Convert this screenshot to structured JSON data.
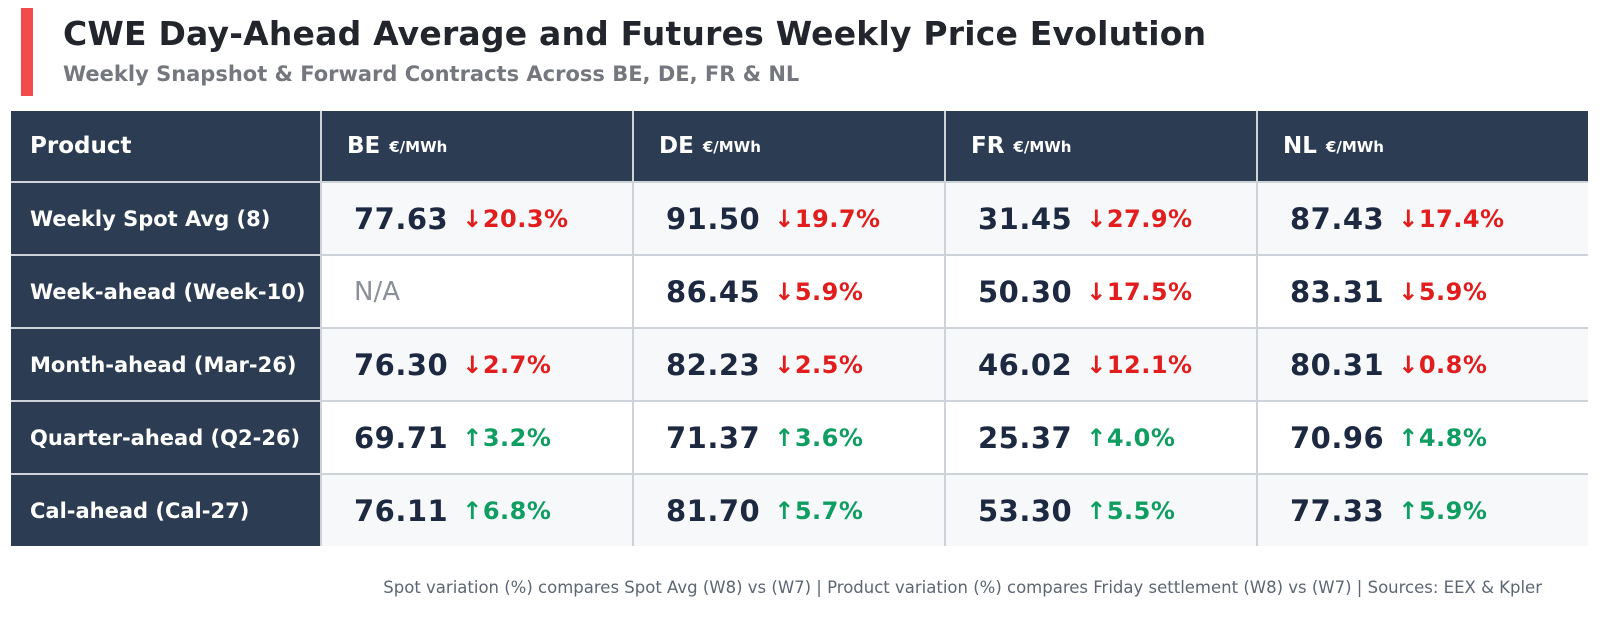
{
  "header": {
    "title": "CWE Day-Ahead Average and Futures Weekly Price Evolution",
    "subtitle": "Weekly Snapshot & Forward Contracts Across BE, DE, FR & NL"
  },
  "table": {
    "columns": [
      {
        "label": "Product",
        "unit": ""
      },
      {
        "label": "BE",
        "unit": "€/MWh"
      },
      {
        "label": "DE",
        "unit": "€/MWh"
      },
      {
        "label": "FR",
        "unit": "€/MWh"
      },
      {
        "label": "NL",
        "unit": "€/MWh"
      }
    ],
    "rows": [
      {
        "product": "Weekly Spot Avg (8)",
        "cells": [
          {
            "value": "77.63",
            "arrow": "↓",
            "change": "20.3%",
            "direction": "down"
          },
          {
            "value": "91.50",
            "arrow": "↓",
            "change": "19.7%",
            "direction": "down"
          },
          {
            "value": "31.45",
            "arrow": "↓",
            "change": "27.9%",
            "direction": "down"
          },
          {
            "value": "87.43",
            "arrow": "↓",
            "change": "17.4%",
            "direction": "down"
          }
        ]
      },
      {
        "product": "Week-ahead (Week-10)",
        "cells": [
          {
            "value": "N/A",
            "arrow": "",
            "change": "",
            "direction": "na"
          },
          {
            "value": "86.45",
            "arrow": "↓",
            "change": "5.9%",
            "direction": "down"
          },
          {
            "value": "50.30",
            "arrow": "↓",
            "change": "17.5%",
            "direction": "down"
          },
          {
            "value": "83.31",
            "arrow": "↓",
            "change": "5.9%",
            "direction": "down"
          }
        ]
      },
      {
        "product": "Month-ahead (Mar-26)",
        "cells": [
          {
            "value": "76.30",
            "arrow": "↓",
            "change": "2.7%",
            "direction": "down"
          },
          {
            "value": "82.23",
            "arrow": "↓",
            "change": "2.5%",
            "direction": "down"
          },
          {
            "value": "46.02",
            "arrow": "↓",
            "change": "12.1%",
            "direction": "down"
          },
          {
            "value": "80.31",
            "arrow": "↓",
            "change": "0.8%",
            "direction": "down"
          }
        ]
      },
      {
        "product": "Quarter-ahead (Q2-26)",
        "cells": [
          {
            "value": "69.71",
            "arrow": "↑",
            "change": "3.2%",
            "direction": "up"
          },
          {
            "value": "71.37",
            "arrow": "↑",
            "change": "3.6%",
            "direction": "up"
          },
          {
            "value": "25.37",
            "arrow": "↑",
            "change": "4.0%",
            "direction": "up"
          },
          {
            "value": "70.96",
            "arrow": "↑",
            "change": "4.8%",
            "direction": "up"
          }
        ]
      },
      {
        "product": "Cal-ahead (Cal-27)",
        "cells": [
          {
            "value": "76.11",
            "arrow": "↑",
            "change": "6.8%",
            "direction": "up"
          },
          {
            "value": "81.70",
            "arrow": "↑",
            "change": "5.7%",
            "direction": "up"
          },
          {
            "value": "53.30",
            "arrow": "↑",
            "change": "5.5%",
            "direction": "up"
          },
          {
            "value": "77.33",
            "arrow": "↑",
            "change": "5.9%",
            "direction": "up"
          }
        ]
      }
    ]
  },
  "footer": {
    "note": "Spot variation (%) compares Spot Avg (W8) vs (W7) | Product variation (%) compares Friday settlement (W8) vs (W7) | Sources: EEX & Kpler"
  },
  "colors": {
    "header_navy": "#2c3d53",
    "value_navy": "#1c2940",
    "negative_red": "#e11d1d",
    "positive_green": "#0f9d62",
    "accent_bar_red": "#f34b4b",
    "row_alt_bg": "#f7f8fa"
  }
}
